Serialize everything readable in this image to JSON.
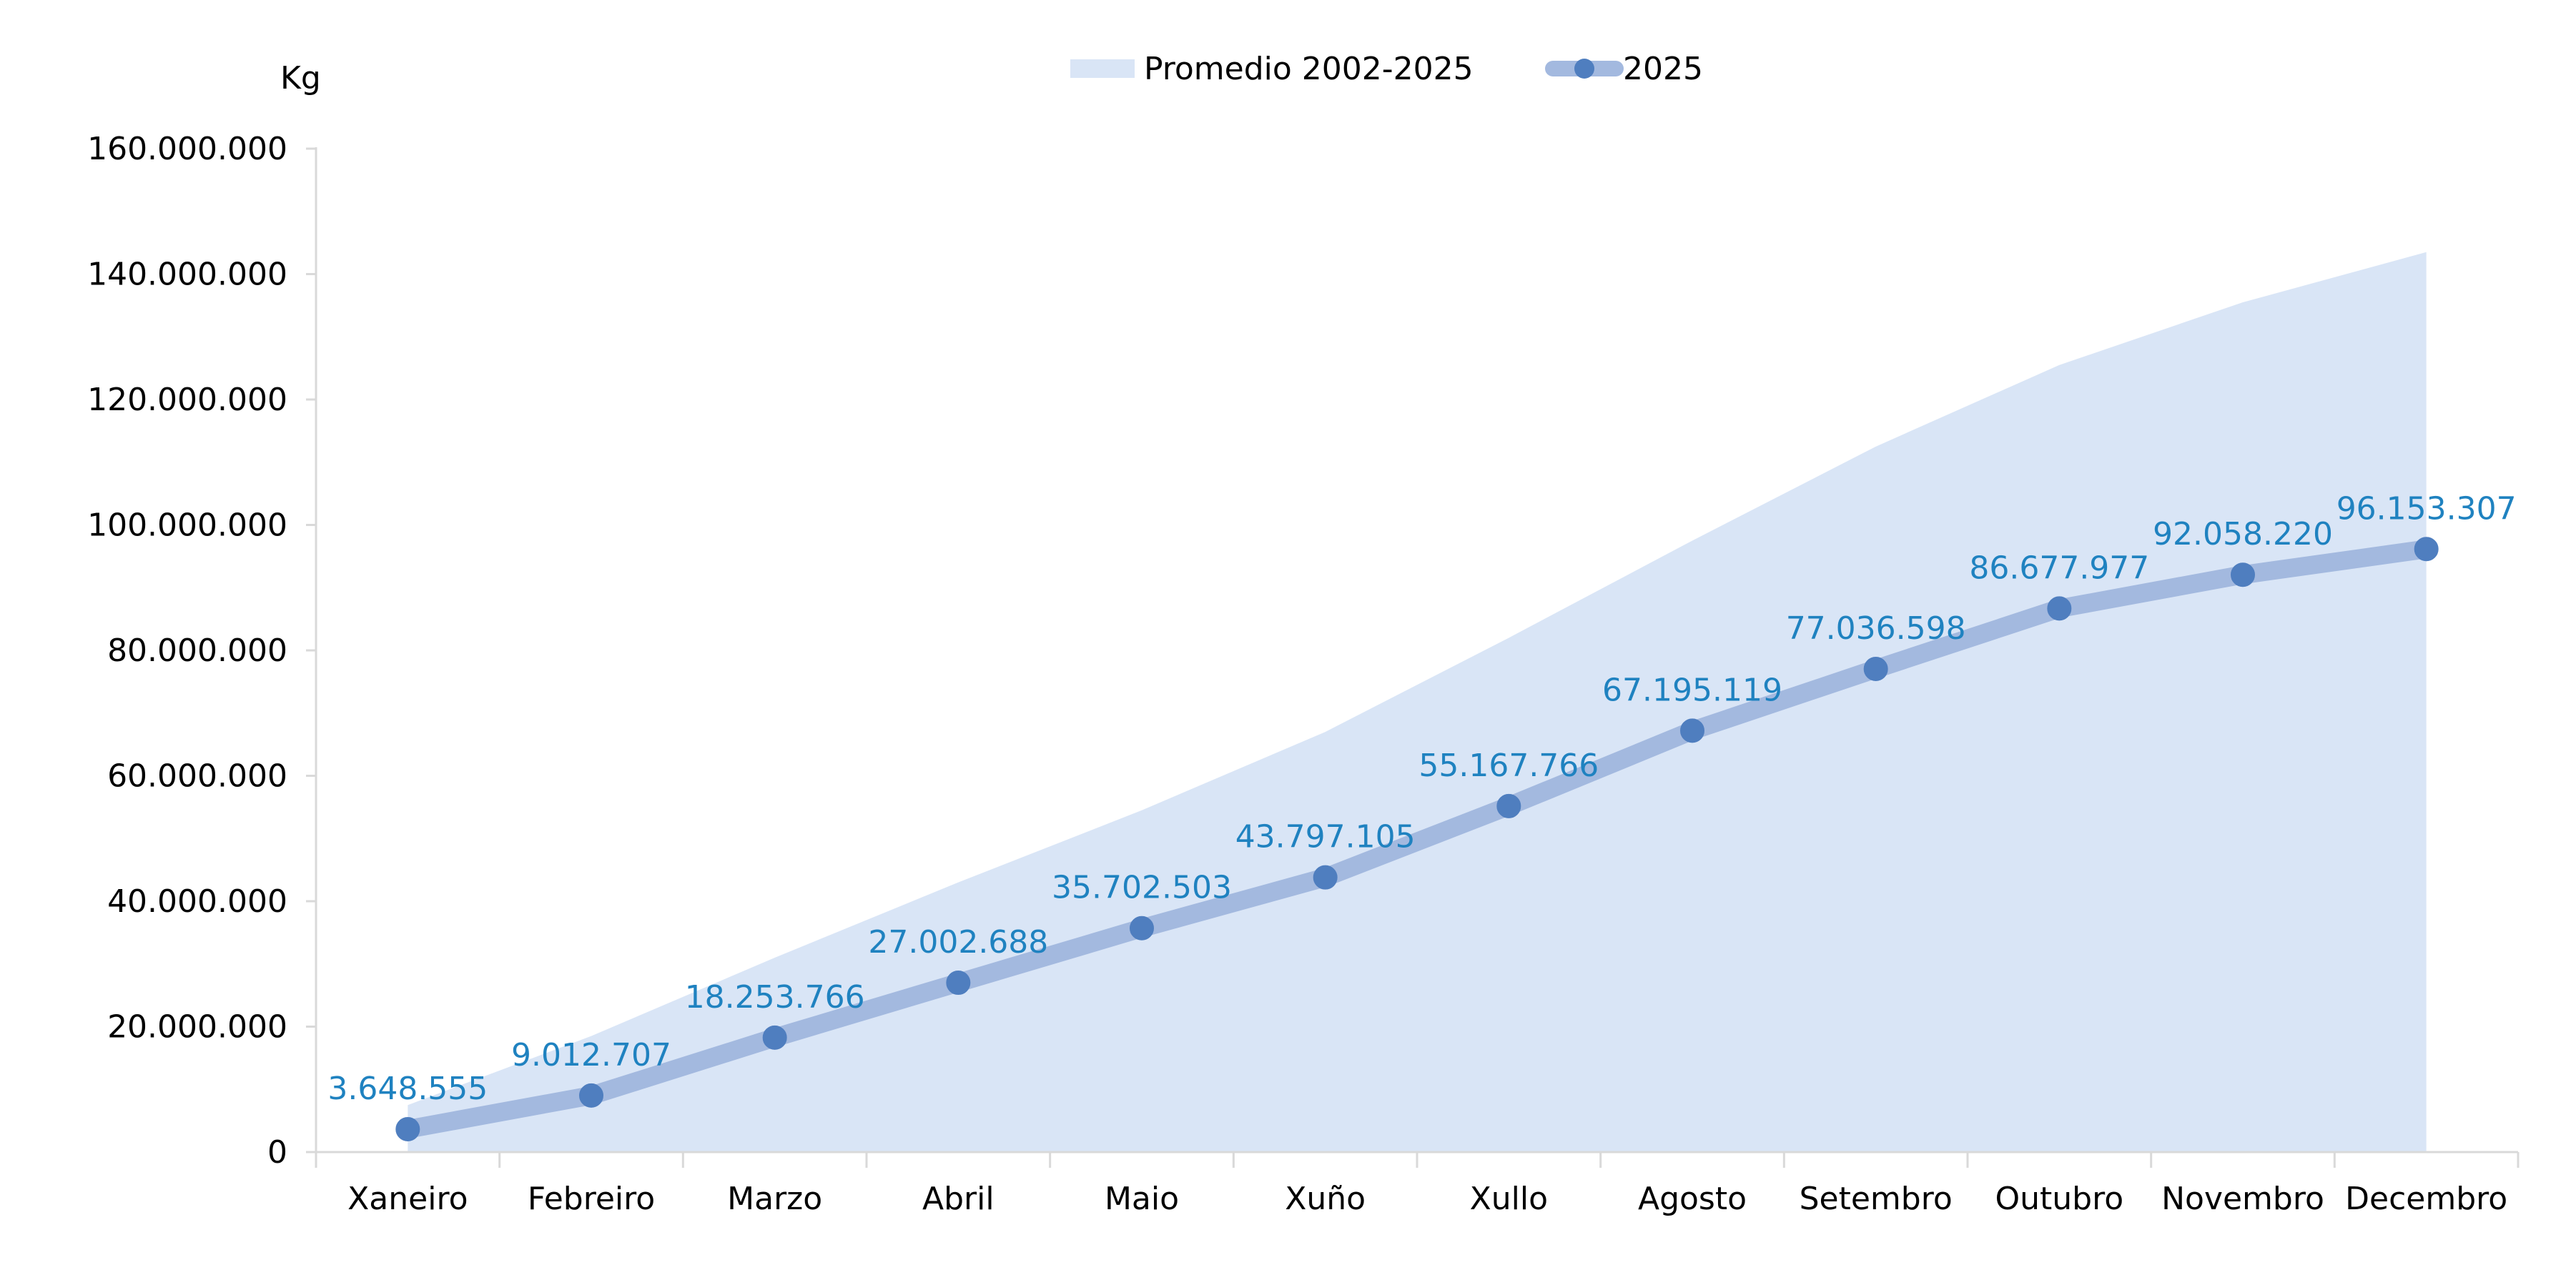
{
  "colors": {
    "area_fill": "#d9e5f6",
    "line_stroke": "#a3b9df",
    "marker_fill": "#4f7ebf",
    "data_label": "#1f82c0",
    "axis_text": "#000000",
    "axis_line": "#d9d9d9"
  },
  "chart_data": {
    "type": "area",
    "title": "",
    "xlabel": "",
    "ylabel": "Kg",
    "ylim": [
      0,
      160000000
    ],
    "yticks": [
      0,
      20000000,
      40000000,
      60000000,
      80000000,
      100000000,
      120000000,
      140000000,
      160000000
    ],
    "ytick_labels": [
      "0",
      "20.000.000",
      "40.000.000",
      "60.000.000",
      "80.000.000",
      "100.000.000",
      "120.000.000",
      "140.000.000",
      "160.000.000"
    ],
    "grid": false,
    "legend_position": "top-center",
    "categories": [
      "Xaneiro",
      "Febreiro",
      "Marzo",
      "Abril",
      "Maio",
      "Xuño",
      "Xullo",
      "Agosto",
      "Setembro",
      "Outubro",
      "Novembro",
      "Decembro"
    ],
    "series": [
      {
        "name": "Promedio 2002-2025",
        "type": "area",
        "values": [
          7500000,
          18500000,
          31000000,
          43000000,
          54500000,
          67000000,
          82000000,
          97500000,
          112500000,
          125500000,
          135500000,
          143500000
        ]
      },
      {
        "name": "2025",
        "type": "line",
        "values": [
          3648555,
          9012707,
          18253766,
          27002688,
          35702503,
          43797105,
          55167766,
          67195119,
          77036598,
          86677977,
          92058220,
          96153307
        ],
        "data_labels": [
          "3.648.555",
          "9.012.707",
          "18.253.766",
          "27.002.688",
          "35.702.503",
          "43.797.105",
          "55.167.766",
          "67.195.119",
          "77.036.598",
          "86.677.977",
          "92.058.220",
          "96.153.307"
        ]
      }
    ]
  }
}
